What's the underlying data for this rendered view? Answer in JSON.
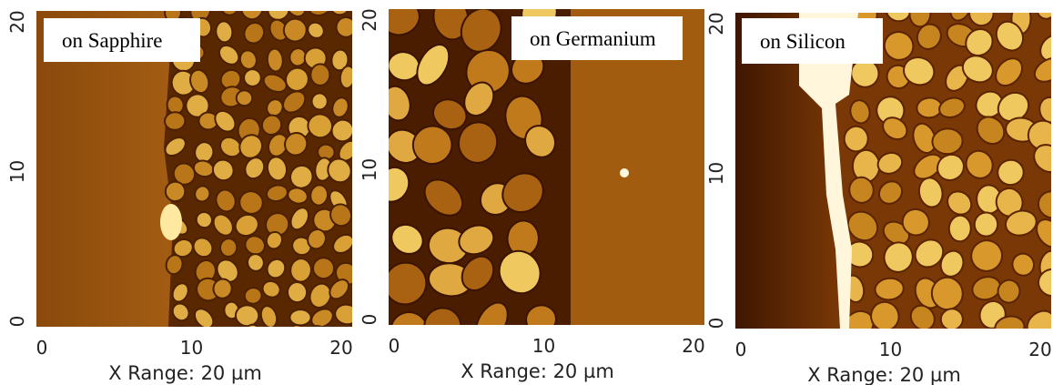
{
  "panels": [
    {
      "label": "on Sapphire",
      "xticks": [
        0,
        10,
        20
      ],
      "yticks": [
        0,
        10,
        20
      ],
      "xlabel": "X Range: 20 µm"
    },
    {
      "label": "on Germanium",
      "xticks": [
        0,
        10,
        20
      ],
      "yticks": [
        0,
        10,
        20
      ],
      "xlabel": "X Range: 20 µm"
    },
    {
      "label": "on Silicon",
      "xticks": [
        0,
        10,
        20
      ],
      "yticks": [
        0,
        10,
        20
      ],
      "xlabel": "X Range: 20 µm"
    }
  ]
}
